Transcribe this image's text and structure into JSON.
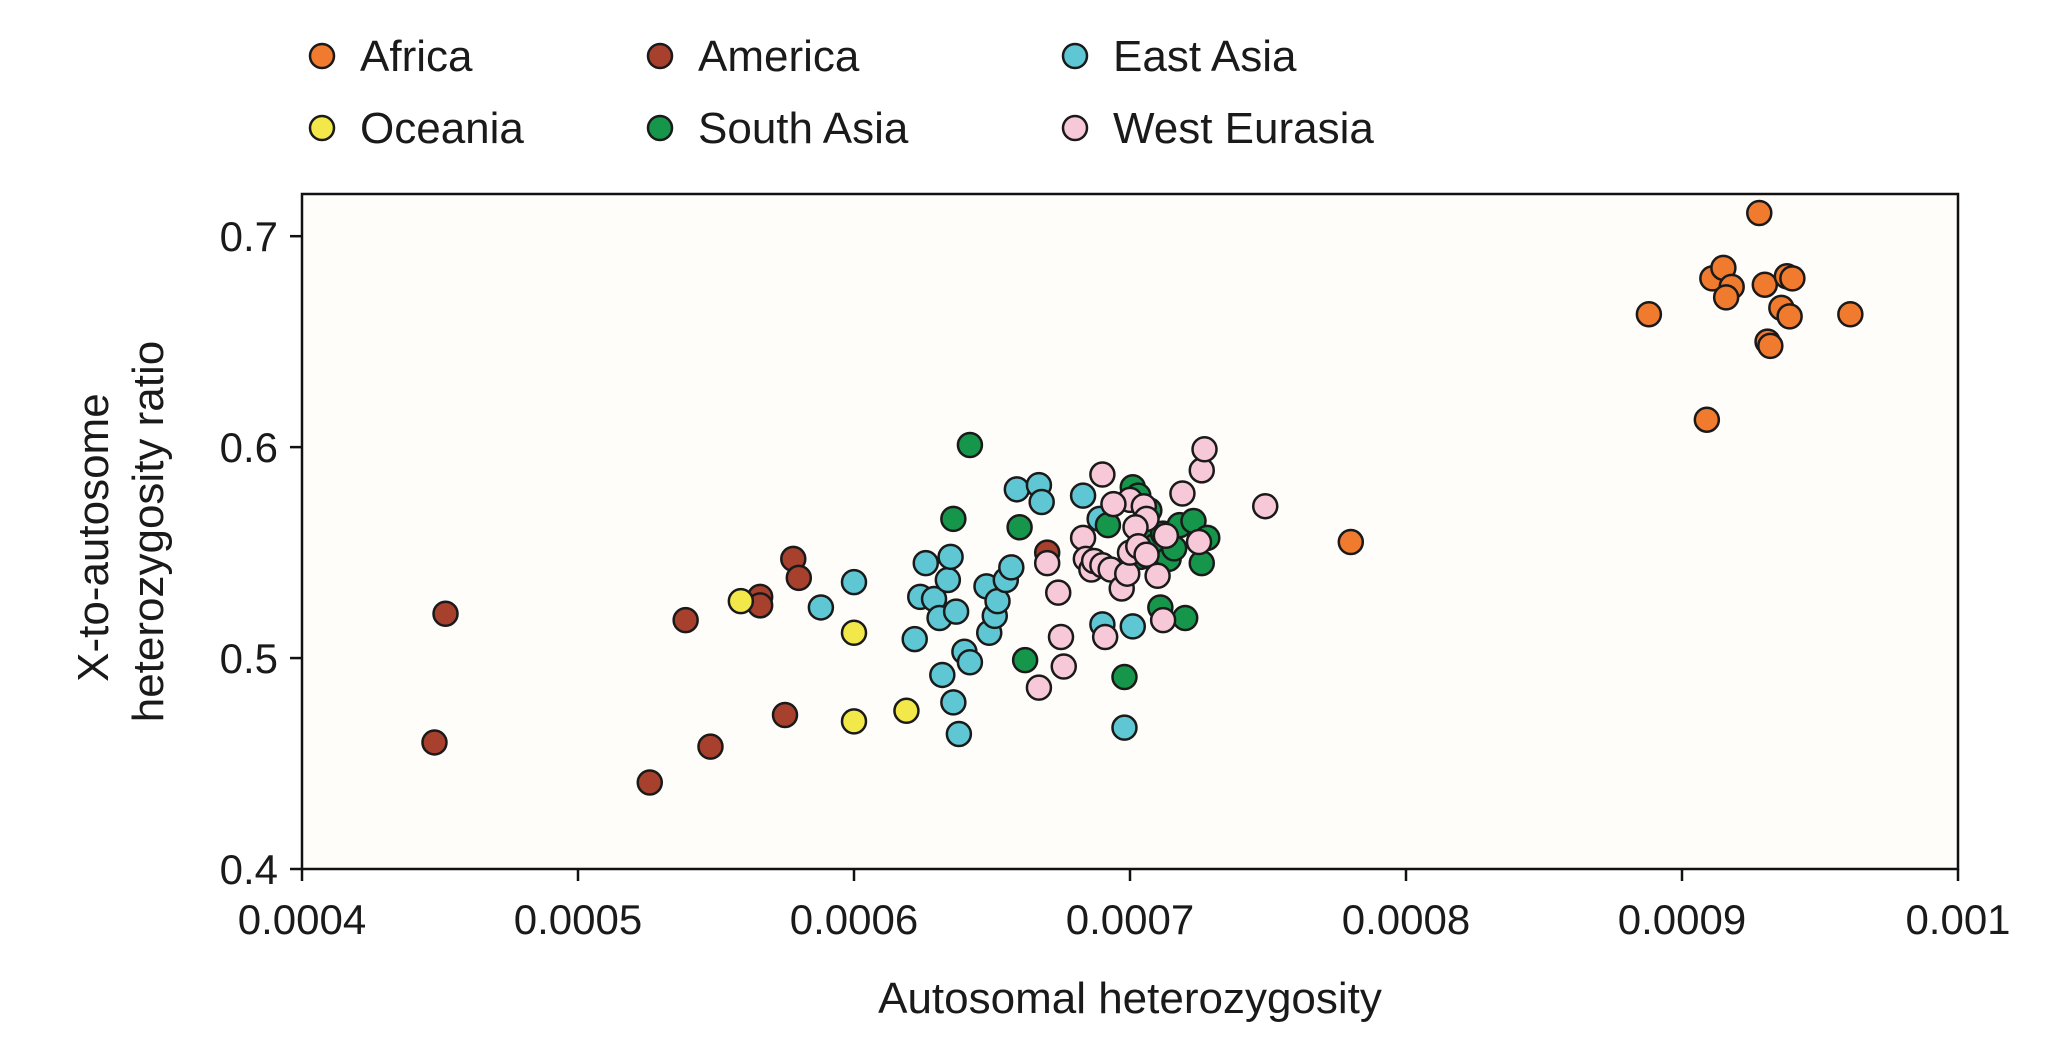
{
  "chart_data": {
    "type": "scatter",
    "title": "",
    "xlabel": "Autosomal heterozygosity",
    "ylabel_lines": [
      "X-to-autosome",
      "heterozygosity ratio"
    ],
    "xlim": [
      0.0004,
      0.001
    ],
    "ylim": [
      0.4,
      0.72
    ],
    "x_ticks": [
      0.0004,
      0.0005,
      0.0006,
      0.0007,
      0.0008,
      0.0009,
      0.001
    ],
    "x_tick_labels": [
      "0.0004",
      "0.0005",
      "0.0006",
      "0.0007",
      "0.0008",
      "0.0009",
      "0.001"
    ],
    "y_ticks": [
      0.4,
      0.5,
      0.6,
      0.7
    ],
    "y_tick_labels": [
      "0.4",
      "0.5",
      "0.6",
      "0.7"
    ],
    "grid": false,
    "legend_position": "top",
    "series": [
      {
        "name": "Africa",
        "color": "#f07a2e",
        "points": [
          [
            0.000928,
            0.711
          ],
          [
            0.000911,
            0.68
          ],
          [
            0.000915,
            0.685
          ],
          [
            0.000918,
            0.676
          ],
          [
            0.000916,
            0.671
          ],
          [
            0.00093,
            0.677
          ],
          [
            0.000936,
            0.666
          ],
          [
            0.000938,
            0.681
          ],
          [
            0.00094,
            0.68
          ],
          [
            0.000939,
            0.662
          ],
          [
            0.000931,
            0.65
          ],
          [
            0.000932,
            0.648
          ],
          [
            0.000888,
            0.663
          ],
          [
            0.000961,
            0.663
          ],
          [
            0.000909,
            0.613
          ],
          [
            0.00078,
            0.555
          ]
        ]
      },
      {
        "name": "America",
        "color": "#a8402e",
        "points": [
          [
            0.000452,
            0.521
          ],
          [
            0.000448,
            0.46
          ],
          [
            0.000526,
            0.441
          ],
          [
            0.000539,
            0.518
          ],
          [
            0.000548,
            0.458
          ],
          [
            0.000566,
            0.529
          ],
          [
            0.000566,
            0.525
          ],
          [
            0.000575,
            0.473
          ],
          [
            0.000578,
            0.547
          ],
          [
            0.00058,
            0.538
          ],
          [
            0.00067,
            0.55
          ]
        ]
      },
      {
        "name": "East Asia",
        "color": "#5ec7d3",
        "points": [
          [
            0.000588,
            0.524
          ],
          [
            0.0006,
            0.536
          ],
          [
            0.000622,
            0.509
          ],
          [
            0.000624,
            0.529
          ],
          [
            0.000626,
            0.545
          ],
          [
            0.000629,
            0.528
          ],
          [
            0.000631,
            0.519
          ],
          [
            0.000632,
            0.492
          ],
          [
            0.000634,
            0.537
          ],
          [
            0.000635,
            0.548
          ],
          [
            0.000636,
            0.479
          ],
          [
            0.000637,
            0.522
          ],
          [
            0.000638,
            0.464
          ],
          [
            0.00064,
            0.503
          ],
          [
            0.000642,
            0.498
          ],
          [
            0.000648,
            0.534
          ],
          [
            0.000649,
            0.512
          ],
          [
            0.000651,
            0.52
          ],
          [
            0.000652,
            0.527
          ],
          [
            0.000655,
            0.537
          ],
          [
            0.000657,
            0.543
          ],
          [
            0.000659,
            0.58
          ],
          [
            0.000667,
            0.582
          ],
          [
            0.000668,
            0.574
          ],
          [
            0.000683,
            0.577
          ],
          [
            0.000689,
            0.566
          ],
          [
            0.00069,
            0.516
          ],
          [
            0.000698,
            0.467
          ],
          [
            0.000701,
            0.515
          ]
        ]
      },
      {
        "name": "Oceania",
        "color": "#f3e84a",
        "points": [
          [
            0.000559,
            0.527
          ],
          [
            0.0006,
            0.512
          ],
          [
            0.0006,
            0.47
          ],
          [
            0.000619,
            0.475
          ]
        ]
      },
      {
        "name": "South Asia",
        "color": "#16964a",
        "points": [
          [
            0.000642,
            0.601
          ],
          [
            0.000636,
            0.566
          ],
          [
            0.00066,
            0.562
          ],
          [
            0.000662,
            0.499
          ],
          [
            0.000692,
            0.563
          ],
          [
            0.000698,
            0.491
          ],
          [
            0.000701,
            0.581
          ],
          [
            0.000703,
            0.577
          ],
          [
            0.000704,
            0.548
          ],
          [
            0.000706,
            0.56
          ],
          [
            0.000707,
            0.57
          ],
          [
            0.000709,
            0.553
          ],
          [
            0.000711,
            0.524
          ],
          [
            0.000712,
            0.559
          ],
          [
            0.000714,
            0.547
          ],
          [
            0.000716,
            0.552
          ],
          [
            0.000718,
            0.563
          ],
          [
            0.00072,
            0.519
          ],
          [
            0.000723,
            0.565
          ],
          [
            0.000726,
            0.545
          ],
          [
            0.000728,
            0.557
          ]
        ]
      },
      {
        "name": "West Eurasia",
        "color": "#f7c9d8",
        "points": [
          [
            0.00069,
            0.587
          ],
          [
            0.0007,
            0.575
          ],
          [
            0.000705,
            0.572
          ],
          [
            0.000706,
            0.566
          ],
          [
            0.000713,
            0.558
          ],
          [
            0.000719,
            0.578
          ],
          [
            0.000726,
            0.589
          ],
          [
            0.000727,
            0.599
          ],
          [
            0.000725,
            0.555
          ],
          [
            0.000749,
            0.572
          ],
          [
            0.000683,
            0.557
          ],
          [
            0.000684,
            0.547
          ],
          [
            0.000686,
            0.542
          ],
          [
            0.000687,
            0.546
          ],
          [
            0.00069,
            0.544
          ],
          [
            0.000693,
            0.542
          ],
          [
            0.000697,
            0.533
          ],
          [
            0.000699,
            0.54
          ],
          [
            0.0007,
            0.55
          ],
          [
            0.000702,
            0.562
          ],
          [
            0.000703,
            0.553
          ],
          [
            0.000706,
            0.549
          ],
          [
            0.00071,
            0.539
          ],
          [
            0.000712,
            0.518
          ],
          [
            0.00067,
            0.545
          ],
          [
            0.000674,
            0.531
          ],
          [
            0.000675,
            0.51
          ],
          [
            0.000676,
            0.496
          ],
          [
            0.000667,
            0.486
          ],
          [
            0.000691,
            0.51
          ],
          [
            0.000694,
            0.573
          ]
        ]
      }
    ]
  }
}
